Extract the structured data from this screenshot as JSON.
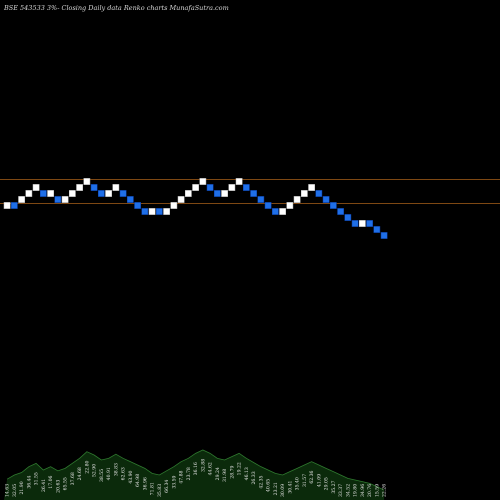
{
  "header": "BSE 543533 3%-   Closing Daily data  Renko  charts MunafaSutra.com",
  "colors": {
    "background": "#000000",
    "up_brick": "#ffffff",
    "down_brick": "#1f6fe8",
    "down_brick_edge": "#0a3fa8",
    "level_line": "#a8601a",
    "volume_fill": "#0b2a0b",
    "volume_edge": "#2f7a2f"
  },
  "chart_data": {
    "type": "renko",
    "title": "BSE 543533 3%-   Closing Daily data  Renko  charts MunafaSutra.com",
    "reference_levels": [
      1.0,
      0.0
    ],
    "bricks": [
      {
        "dir": "up",
        "level": 0
      },
      {
        "dir": "down",
        "level": 0
      },
      {
        "dir": "up",
        "level": 1
      },
      {
        "dir": "up",
        "level": 2
      },
      {
        "dir": "up",
        "level": 3
      },
      {
        "dir": "down",
        "level": 2
      },
      {
        "dir": "up",
        "level": 2
      },
      {
        "dir": "down",
        "level": 1
      },
      {
        "dir": "up",
        "level": 1
      },
      {
        "dir": "up",
        "level": 2
      },
      {
        "dir": "up",
        "level": 3
      },
      {
        "dir": "up",
        "level": 4
      },
      {
        "dir": "down",
        "level": 3
      },
      {
        "dir": "down",
        "level": 2
      },
      {
        "dir": "up",
        "level": 2
      },
      {
        "dir": "up",
        "level": 3
      },
      {
        "dir": "down",
        "level": 2
      },
      {
        "dir": "down",
        "level": 1
      },
      {
        "dir": "down",
        "level": 0
      },
      {
        "dir": "down",
        "level": -1
      },
      {
        "dir": "up",
        "level": -1
      },
      {
        "dir": "down",
        "level": -1
      },
      {
        "dir": "up",
        "level": -1
      },
      {
        "dir": "up",
        "level": 0
      },
      {
        "dir": "up",
        "level": 1
      },
      {
        "dir": "up",
        "level": 2
      },
      {
        "dir": "up",
        "level": 3
      },
      {
        "dir": "up",
        "level": 4
      },
      {
        "dir": "down",
        "level": 3
      },
      {
        "dir": "down",
        "level": 2
      },
      {
        "dir": "up",
        "level": 2
      },
      {
        "dir": "up",
        "level": 3
      },
      {
        "dir": "up",
        "level": 4
      },
      {
        "dir": "down",
        "level": 3
      },
      {
        "dir": "down",
        "level": 2
      },
      {
        "dir": "down",
        "level": 1
      },
      {
        "dir": "down",
        "level": 0
      },
      {
        "dir": "down",
        "level": -1
      },
      {
        "dir": "up",
        "level": -1
      },
      {
        "dir": "up",
        "level": 0
      },
      {
        "dir": "up",
        "level": 1
      },
      {
        "dir": "up",
        "level": 2
      },
      {
        "dir": "up",
        "level": 3
      },
      {
        "dir": "down",
        "level": 2
      },
      {
        "dir": "down",
        "level": 1
      },
      {
        "dir": "down",
        "level": 0
      },
      {
        "dir": "down",
        "level": -1
      },
      {
        "dir": "down",
        "level": -2
      },
      {
        "dir": "down",
        "level": -3
      },
      {
        "dir": "up",
        "level": -3
      },
      {
        "dir": "down",
        "level": -3
      },
      {
        "dir": "down",
        "level": -4
      },
      {
        "dir": "down",
        "level": -5
      }
    ],
    "volume": [
      25,
      30,
      33,
      40,
      44,
      36,
      40,
      35,
      38,
      44,
      50,
      58,
      54,
      48,
      50,
      55,
      50,
      46,
      42,
      38,
      32,
      30,
      35,
      40,
      46,
      50,
      56,
      60,
      56,
      50,
      48,
      52,
      56,
      50,
      45,
      40,
      36,
      32,
      30,
      34,
      38,
      42,
      46,
      42,
      38,
      34,
      30,
      26,
      24,
      22,
      20,
      16,
      12
    ],
    "volume_labels": [
      "14.63",
      "32.05",
      "21.90",
      "36.44",
      "31.55",
      "26.41",
      "17.06",
      "20.63",
      "65.55",
      "37.68",
      "24.68",
      "22.80",
      "52.90",
      "38.55",
      "40.91",
      "38.83",
      "62.63",
      "43.90",
      "64.98",
      "36.96",
      "71.81",
      "35.83",
      "66.34",
      "33.59",
      "47.88",
      "23.78",
      "36.16",
      "32.88",
      "44.62",
      "29.24",
      "31.98",
      "28.79",
      "19.22",
      "46.13",
      "26.33",
      "42.35",
      "40.65",
      "23.21",
      "30.09",
      "30.41",
      "35.40",
      "31.57",
      "62.36",
      "41.09",
      "29.05",
      "35.27",
      "33.37",
      "34.52",
      "19.80",
      "34.96",
      "20.76",
      "15.59",
      "22.26"
    ]
  }
}
